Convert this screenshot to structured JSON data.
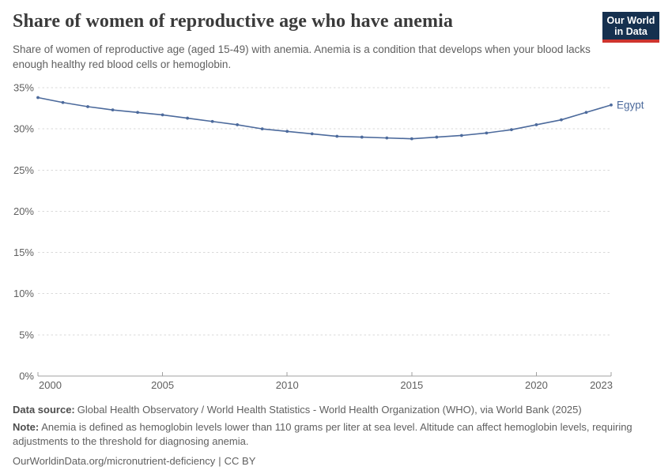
{
  "header": {
    "title": "Share of women of reproductive age who have anemia",
    "subtitle": "Share of women of reproductive age (aged 15-49) with anemia. Anemia is a condition that develops when your blood lacks enough healthy red blood cells or hemoglobin.",
    "logo": {
      "line1": "Our World",
      "line2": "in Data"
    }
  },
  "chart_data": {
    "type": "line",
    "x": [
      2000,
      2001,
      2002,
      2003,
      2004,
      2005,
      2006,
      2007,
      2008,
      2009,
      2010,
      2011,
      2012,
      2013,
      2014,
      2015,
      2016,
      2017,
      2018,
      2019,
      2020,
      2021,
      2022,
      2023
    ],
    "series": [
      {
        "name": "Egypt",
        "color": "#4c6a9c",
        "values": [
          33.8,
          33.2,
          32.7,
          32.3,
          32.0,
          31.7,
          31.3,
          30.9,
          30.5,
          30.0,
          29.7,
          29.4,
          29.1,
          29.0,
          28.9,
          28.8,
          29.0,
          29.2,
          29.5,
          29.9,
          30.5,
          31.1,
          32.0,
          32.9
        ]
      }
    ],
    "xlim": [
      2000,
      2023
    ],
    "ylim": [
      0,
      35
    ],
    "x_tick_values": [
      2000,
      2005,
      2010,
      2015,
      2020,
      2023
    ],
    "x_tick_labels": [
      "2000",
      "2005",
      "2010",
      "2015",
      "2020",
      "2023"
    ],
    "y_tick_values": [
      0,
      5,
      10,
      15,
      20,
      25,
      30,
      35
    ],
    "y_tick_labels": [
      "0%",
      "5%",
      "10%",
      "15%",
      "20%",
      "25%",
      "30%",
      "35%"
    ],
    "grid": "horizontal-dashed",
    "legend_position": "end-of-line-label",
    "unit": "%"
  },
  "footer": {
    "data_source_label": "Data source:",
    "data_source": "Global Health Observatory / World Health Statistics - World Health Organization (WHO), via World Bank (2025)",
    "note_label": "Note:",
    "note": "Anemia is defined as hemoglobin levels lower than 110 grams per liter at sea level. Altitude can affect hemoglobin levels, requiring adjustments to the threshold for diagnosing anemia.",
    "url": "OurWorldinData.org/micronutrient-deficiency",
    "separator": "|",
    "license": "CC BY"
  },
  "colors": {
    "background": "#ffffff",
    "title_text": "#3a3a3a",
    "body_text": "#606060",
    "axis_text": "#5f5f5f",
    "gridline": "#d9d9d9",
    "axis_line": "#a0a0a0",
    "series_line": "#4c6a9c",
    "logo_bg": "#15304f",
    "logo_bar": "#ce342e"
  }
}
